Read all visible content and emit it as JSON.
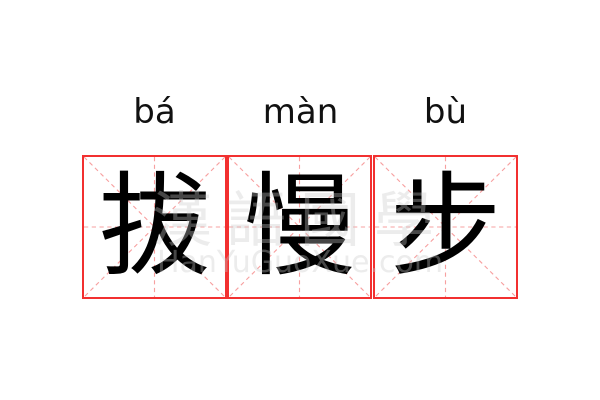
{
  "characters": [
    {
      "pinyin": "bá",
      "hanzi": "拔"
    },
    {
      "pinyin": "màn",
      "hanzi": "慢"
    },
    {
      "pinyin": "bù",
      "hanzi": "步"
    }
  ],
  "watermark": {
    "text": "漢語國學",
    "site": "HanYuGuoXue.com"
  },
  "colors": {
    "border": "#f23030",
    "guide": "#f7a0a0"
  }
}
